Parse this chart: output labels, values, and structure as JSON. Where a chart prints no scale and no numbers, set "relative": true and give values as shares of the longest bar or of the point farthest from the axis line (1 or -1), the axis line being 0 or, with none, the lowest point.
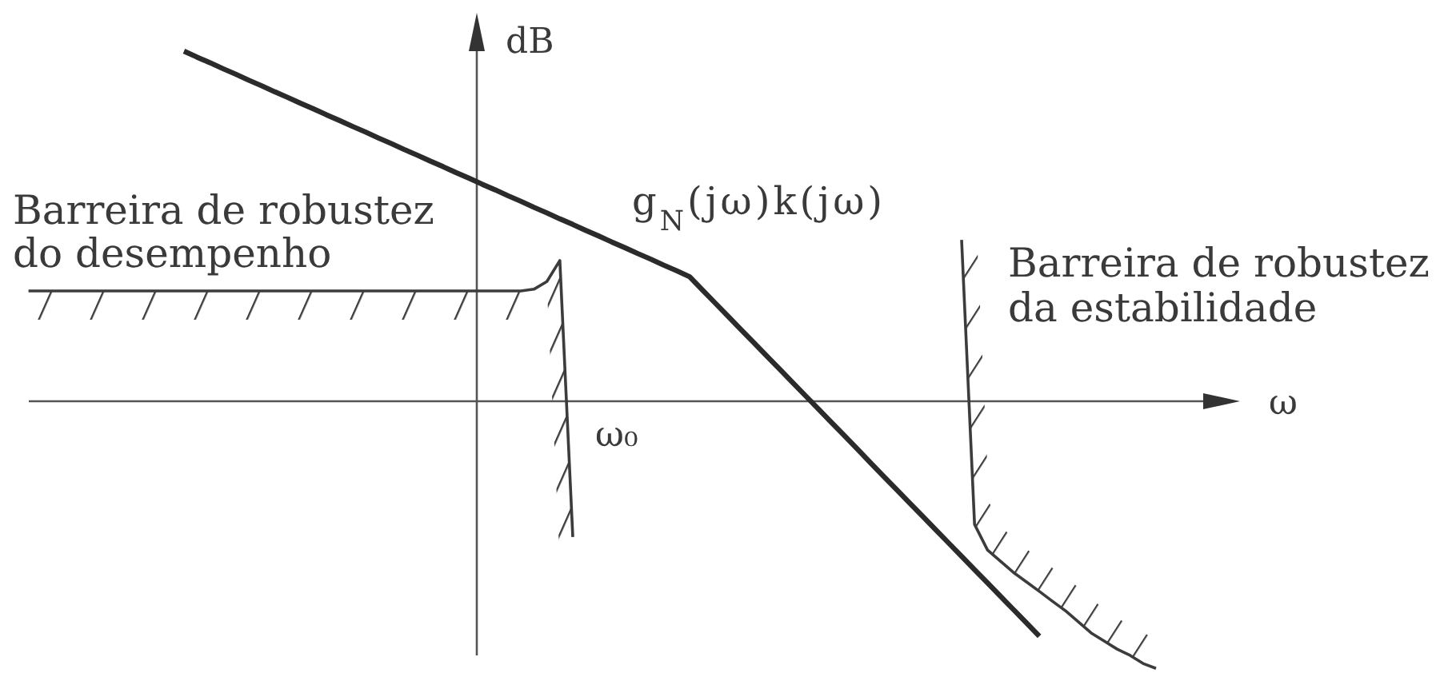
{
  "chart_data": {
    "type": "line",
    "xlabel": "ω",
    "ylabel": "dB",
    "relative": true,
    "categories": [
      null,
      null,
      null,
      null,
      null,
      null,
      null,
      null,
      null,
      null,
      null,
      null,
      null,
      null,
      null,
      null,
      null,
      null,
      null,
      null,
      null,
      null,
      null,
      null,
      null,
      null,
      null,
      null,
      null,
      null,
      null,
      null,
      null,
      null,
      null,
      null,
      null,
      null,
      null,
      null,
      null,
      null,
      null,
      null,
      null,
      null,
      null,
      null,
      null,
      null,
      null,
      null,
      null,
      null,
      null,
      null,
      null,
      null,
      null,
      null,
      null,
      null,
      null,
      null,
      null,
      null,
      null,
      null,
      null,
      null,
      null,
      null,
      null,
      null,
      null,
      null,
      null,
      null,
      null,
      null,
      null,
      null,
      null,
      null,
      null,
      null,
      null,
      null
    ],
    "series": [
      {
        "name": "g$_{N}$(jω)k(jω)",
        "color": "#2b2b2b",
        "values": [
          null,
          null,
          null,
          null,
          null,
          null,
          null,
          null,
          null,
          null,
          null,
          null,
          1.0,
          0.983,
          0.967,
          0.95,
          0.934,
          0.917,
          0.901,
          0.884,
          0.868,
          0.851,
          0.835,
          0.818,
          0.802,
          0.785,
          0.769,
          0.752,
          0.736,
          0.719,
          0.703,
          0.686,
          0.67,
          0.653,
          0.637,
          0.62,
          0.604,
          0.587,
          0.571,
          0.554,
          0.538,
          0.521,
          0.505,
          0.488,
          0.472,
          0.455,
          0.439,
          0.422,
          0.406,
          0.389,
          0.373,
          0.356,
          0.318,
          0.28,
          0.242,
          0.204,
          0.166,
          0.128,
          0.09,
          0.052,
          0.014,
          -0.024,
          -0.062,
          -0.1,
          -0.138,
          -0.177,
          -0.215,
          -0.253,
          -0.291,
          -0.329,
          -0.367,
          -0.405,
          -0.443,
          -0.481,
          -0.519,
          -0.557,
          -0.595,
          -0.633,
          -0.671,
          null,
          null,
          null,
          null,
          null,
          null,
          null,
          null,
          null
        ]
      },
      {
        "name": "Barreira de robustez do desempenho",
        "color": "#3c3c3c",
        "values": [
          0.315,
          0.315,
          0.315,
          0.315,
          0.315,
          0.315,
          0.315,
          0.315,
          0.315,
          0.315,
          0.315,
          0.315,
          0.315,
          0.315,
          0.315,
          0.315,
          0.315,
          0.315,
          0.315,
          0.315,
          0.315,
          0.315,
          0.315,
          0.315,
          0.315,
          0.315,
          0.315,
          0.315,
          0.315,
          0.315,
          0.315,
          0.315,
          0.315,
          0.315,
          0.315,
          0.315,
          0.315,
          0.315,
          0.315,
          0.32,
          0.342,
          0.402,
          -0.388,
          null,
          null,
          null,
          null,
          null,
          null,
          null,
          null,
          null,
          null,
          null,
          null,
          null,
          null,
          null,
          null,
          null,
          null,
          null,
          null,
          null,
          null,
          null,
          null,
          null,
          null,
          null,
          null,
          null,
          null,
          null,
          null,
          null,
          null,
          null,
          null,
          null,
          null,
          null,
          null,
          null,
          null,
          null,
          null,
          null
        ]
      },
      {
        "name": "Barreira de robustez da estabilidade",
        "color": "#3c3c3c",
        "values": [
          null,
          null,
          null,
          null,
          null,
          null,
          null,
          null,
          null,
          null,
          null,
          null,
          null,
          null,
          null,
          null,
          null,
          null,
          null,
          null,
          null,
          null,
          null,
          null,
          null,
          null,
          null,
          null,
          null,
          null,
          null,
          null,
          null,
          null,
          null,
          null,
          null,
          null,
          null,
          null,
          null,
          null,
          null,
          null,
          null,
          null,
          null,
          null,
          null,
          null,
          null,
          null,
          null,
          null,
          null,
          null,
          null,
          null,
          null,
          null,
          null,
          null,
          null,
          null,
          null,
          null,
          null,
          null,
          null,
          null,
          null,
          null,
          0.461,
          -0.352,
          -0.425,
          -0.457,
          -0.489,
          -0.516,
          -0.543,
          -0.571,
          -0.598,
          -0.63,
          -0.662,
          -0.685,
          -0.708,
          -0.726,
          -0.749,
          -0.763
        ]
      }
    ],
    "annotations": [
      "ω₀"
    ]
  }
}
